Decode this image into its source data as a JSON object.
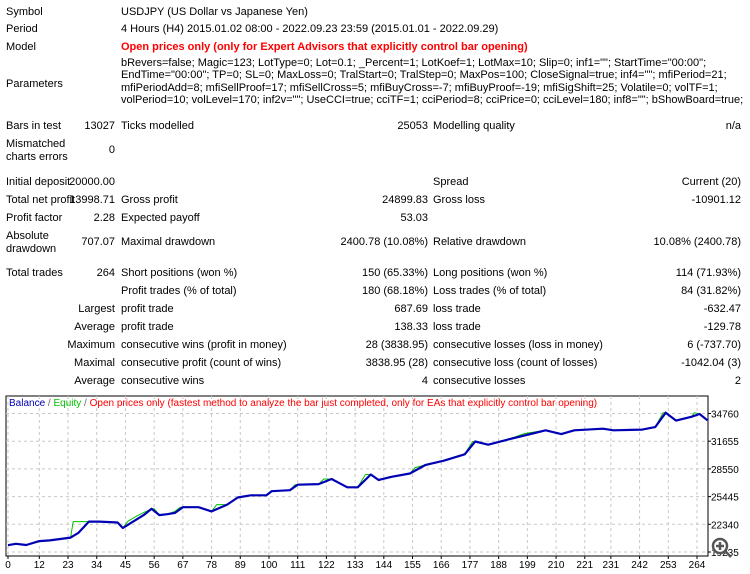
{
  "summary": {
    "symbol": {
      "label": "Symbol",
      "value": "USDJPY (US Dollar vs Japanese Yen)"
    },
    "period": {
      "label": "Period",
      "value": "4 Hours (H4) 2015.01.02 08:00 - 2022.09.23 23:59 (2015.01.01 - 2022.09.29)"
    },
    "model": {
      "label": "Model",
      "value": "Open prices only (only for Expert Advisors that explicitly control bar opening)"
    },
    "parameters": {
      "label": "Parameters",
      "value": "bRevers=false; Magic=123; LotType=0; Lot=0.1; _Percent=1; LotKoef=1; LotMax=10; Slip=0; inf1=\"\"; StartTime=\"00:00\"; EndTime=\"00:00\"; TP=0; SL=0; MaxLoss=0; TralStart=0; TralStep=0; MaxPos=100; CloseSignal=true; inf4=\"\"; mfiPeriod=21; mfiPeriodAdd=8; mfiSellProof=17; mfiSellCross=5; mfiBuyCross=-7; mfiBuyProof=-19; mfiSigShift=25; Volatile=0; volTF=1; volPeriod=10; volLevel=170; inf2v=\"\"; UseCCI=true; cciTF=1; cciPeriod=8; cciPrice=0; cciLevel=180; inf8=\"\"; bShowBoard=true;"
    },
    "bars": {
      "label": "Bars in test",
      "value": "13027",
      "ticks_label": "Ticks modelled",
      "ticks_value": "25053",
      "quality_label": "Modelling quality",
      "quality_value": "n/a"
    },
    "mismatched": {
      "label": "Mismatched charts errors",
      "value": "0"
    }
  },
  "stats": [
    {
      "l1": "Initial deposit",
      "v1": "20000.00",
      "l2": "",
      "v2": "",
      "l3": "Spread",
      "v3": "Current (20)"
    },
    {
      "l1": "Total net profit",
      "v1": "13998.71",
      "l2": "Gross profit",
      "v2": "24899.83",
      "l3": "Gross loss",
      "v3": "-10901.12"
    },
    {
      "l1": "Profit factor",
      "v1": "2.28",
      "l2": "Expected payoff",
      "v2": "53.03",
      "l3": "",
      "v3": ""
    },
    {
      "l1": "Absolute drawdown",
      "v1": "707.07",
      "l2": "Maximal drawdown",
      "v2": "2400.78 (10.08%)",
      "l3": "Relative drawdown",
      "v3": "10.08% (2400.78)"
    },
    {
      "l1": "Total trades",
      "v1": "264",
      "l2": "Short positions (won %)",
      "v2": "150 (65.33%)",
      "l3": "Long positions (won %)",
      "v3": "114 (71.93%)"
    },
    {
      "l1": "",
      "v1": "",
      "l2": "Profit trades (% of total)",
      "v2": "180 (68.18%)",
      "l3": "Loss trades (% of total)",
      "v3": "84 (31.82%)"
    },
    {
      "l1": "",
      "v1": "Largest",
      "l2": "profit trade",
      "v2": "687.69",
      "l3": "loss trade",
      "v3": "-632.47"
    },
    {
      "l1": "",
      "v1": "Average",
      "l2": "profit trade",
      "v2": "138.33",
      "l3": "loss trade",
      "v3": "-129.78"
    },
    {
      "l1": "",
      "v1": "Maximum",
      "l2": "consecutive wins (profit in money)",
      "v2": "28 (3838.95)",
      "l3": "consecutive losses (loss in money)",
      "v3": "6 (-737.70)"
    },
    {
      "l1": "",
      "v1": "Maximal",
      "l2": "consecutive profit (count of wins)",
      "v2": "3838.95 (28)",
      "l3": "consecutive loss (count of losses)",
      "v3": "-1042.04 (3)"
    },
    {
      "l1": "",
      "v1": "Average",
      "l2": "consecutive wins",
      "v2": "4",
      "l3": "consecutive losses",
      "v3": "2"
    }
  ],
  "chart_data": {
    "type": "line",
    "legend": {
      "balance": "Balance",
      "sep1": " / ",
      "equity": "Equity",
      "sep2": " / ",
      "note": "Open prices only (fastest method to analyze the bar just completed, only for EAs that explicitly control bar opening)"
    },
    "colors": {
      "balance": "#0000b4",
      "equity": "#00c000",
      "note": "#ff0000",
      "grid": "#c8c8c8"
    },
    "x_ticks": [
      0,
      12,
      23,
      34,
      45,
      56,
      67,
      78,
      89,
      100,
      111,
      122,
      133,
      144,
      155,
      166,
      177,
      188,
      199,
      210,
      221,
      231,
      242,
      253,
      264
    ],
    "y_ticks": [
      19235,
      22340,
      25445,
      28550,
      31655,
      34760
    ],
    "xlim": [
      0,
      268
    ],
    "ylim": [
      18700,
      35600
    ],
    "grid": true,
    "series": [
      {
        "name": "Balance",
        "x": [
          0,
          3,
          7,
          12,
          16,
          24,
          27,
          31,
          35,
          42,
          44,
          47,
          52,
          55,
          58,
          61,
          64,
          67,
          73,
          78,
          84,
          88,
          93,
          99,
          101,
          108,
          111,
          119,
          124,
          127,
          130,
          134,
          139,
          142,
          147,
          154,
          160,
          167,
          175,
          179,
          184,
          191,
          201,
          206,
          212,
          217,
          228,
          232,
          243,
          248,
          252,
          256,
          262,
          265,
          268
        ],
        "y": [
          20000,
          20150,
          20025,
          20455,
          20530,
          20850,
          21390,
          22645,
          22645,
          22540,
          21930,
          22470,
          23370,
          24080,
          23370,
          23470,
          23615,
          24260,
          24260,
          23790,
          24550,
          25340,
          25590,
          25590,
          26055,
          26160,
          26775,
          26845,
          27420,
          26950,
          26485,
          26485,
          27920,
          27310,
          27670,
          28030,
          29000,
          29470,
          30190,
          31620,
          31260,
          31800,
          32520,
          32880,
          32450,
          32880,
          33060,
          32880,
          32950,
          33240,
          34850,
          33960,
          34400,
          34700,
          33998.71
        ]
      },
      {
        "name": "Equity",
        "x": [
          0,
          3,
          7,
          12,
          16,
          24,
          25,
          31,
          35,
          42,
          44,
          46,
          50,
          55,
          56,
          58,
          61,
          64,
          66,
          73,
          78,
          80,
          84,
          88,
          93,
          99,
          101,
          108,
          110,
          119,
          121,
          124,
          127,
          130,
          134,
          137,
          139,
          142,
          146,
          154,
          156,
          160,
          167,
          175,
          178,
          184,
          191,
          198,
          206,
          212,
          217,
          228,
          232,
          243,
          248,
          251,
          252,
          256,
          262,
          263,
          265,
          268
        ],
        "y": [
          20000,
          20150,
          20025,
          20455,
          20530,
          20850,
          22645,
          22645,
          22645,
          22540,
          21930,
          22700,
          23370,
          24080,
          24080,
          23370,
          23470,
          23800,
          24260,
          24260,
          23790,
          24550,
          24550,
          25340,
          25590,
          25590,
          26055,
          26160,
          26775,
          26845,
          27420,
          27420,
          26950,
          26485,
          26485,
          27920,
          27920,
          27310,
          27670,
          28030,
          28700,
          29000,
          29470,
          30190,
          31620,
          31260,
          31800,
          32520,
          32880,
          32450,
          32880,
          33060,
          32880,
          32950,
          33240,
          34850,
          34850,
          33960,
          34400,
          34850,
          34700,
          33998.71
        ]
      }
    ]
  }
}
